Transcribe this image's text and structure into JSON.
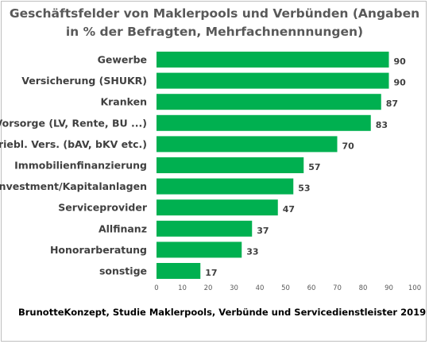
{
  "chart_data": {
    "type": "bar",
    "orientation": "horizontal",
    "title_lines": [
      "Geschäftsfelder von Maklerpools und Verbünden (Angaben",
      "in % der Befragten, Mehrfachnennnungen)"
    ],
    "categories": [
      "Gewerbe",
      "Versicherung (SHUKR)",
      "Kranken",
      "Vorsorge (LV, Rente, BU ...)",
      "betriebl. Vers. (bAV, bKV etc.)",
      "Immobilienfinanzierung",
      "Investment/Kapitalanlagen",
      "Serviceprovider",
      "Allfinanz",
      "Honorarberatung",
      "sonstige"
    ],
    "values": [
      90,
      90,
      87,
      83,
      70,
      57,
      53,
      47,
      37,
      33,
      17
    ],
    "xlim": [
      0,
      100
    ],
    "xticks": [
      0,
      10,
      20,
      30,
      40,
      50,
      60,
      70,
      80,
      90,
      100
    ],
    "bar_color": "#00b050",
    "gridlines": false,
    "legend": "none"
  },
  "footer": "BrunotteKonzept, Studie Maklerpools, Verbünde und Servicedienstleister 2019"
}
